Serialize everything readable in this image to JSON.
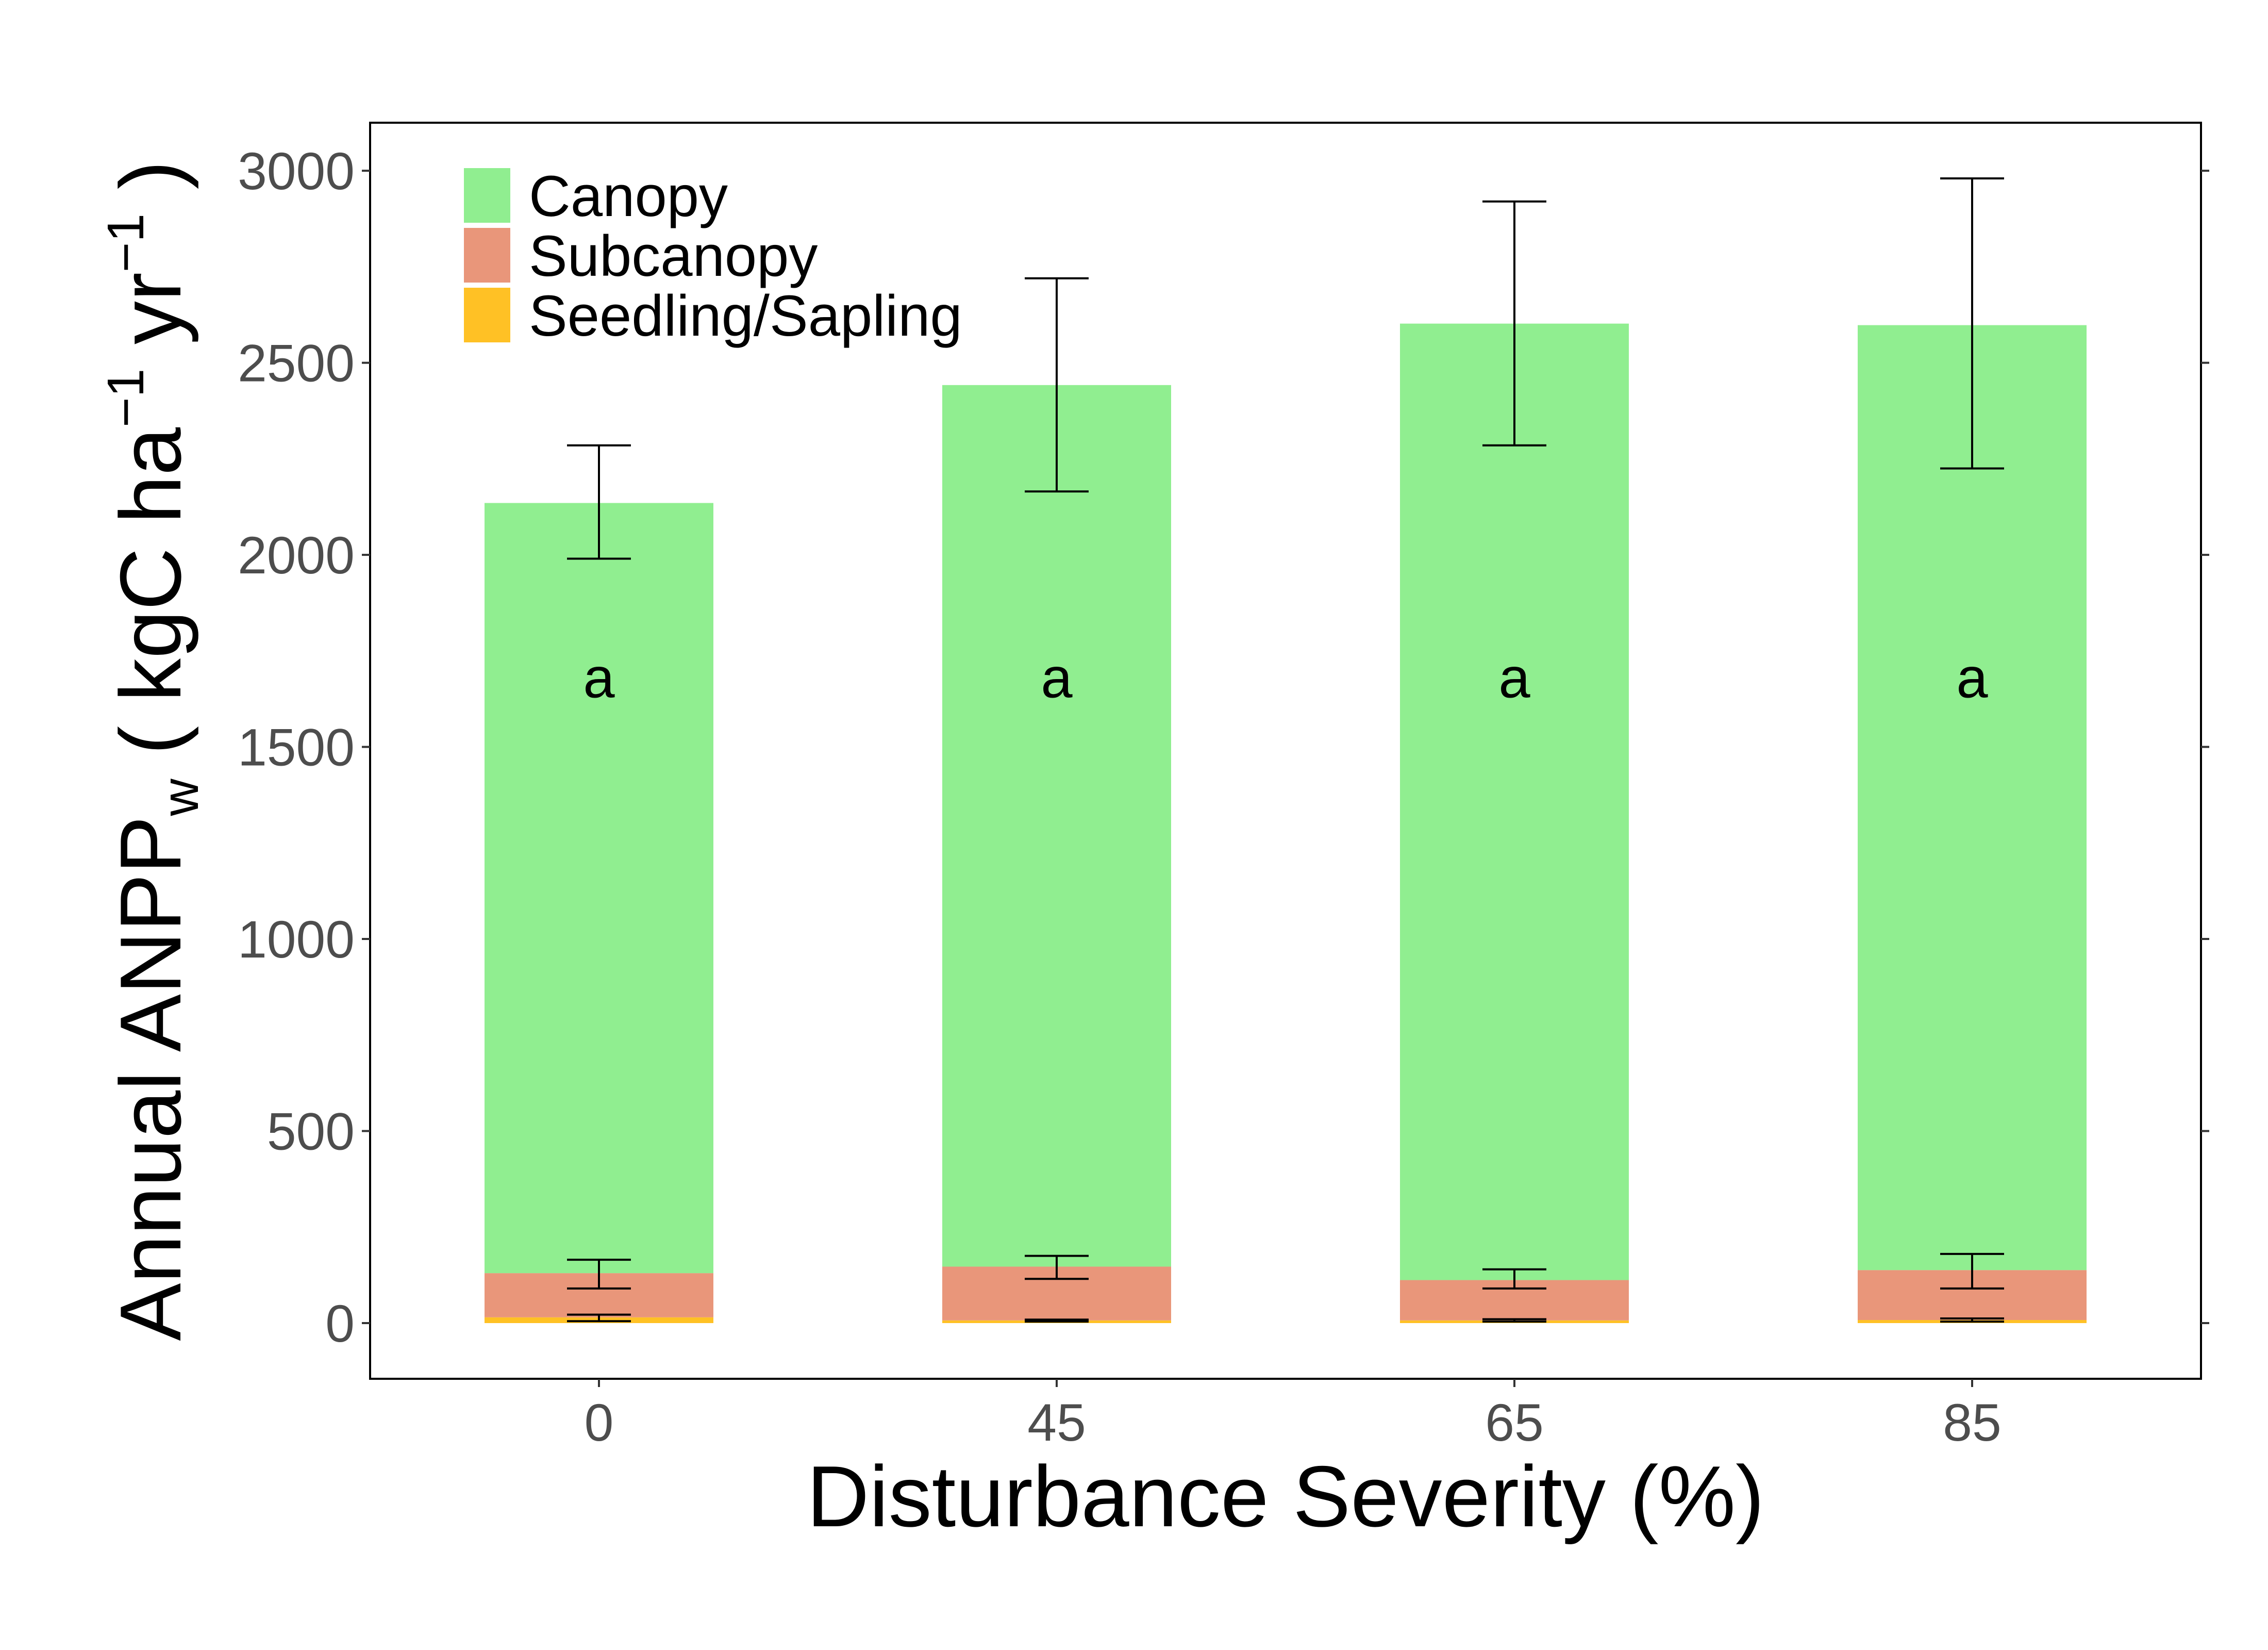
{
  "chart_data": {
    "type": "bar",
    "stacked": true,
    "categories": [
      "0",
      "45",
      "65",
      "85"
    ],
    "series": [
      {
        "name": "Canopy",
        "color": "#90EE90",
        "values": [
          2005,
          2295,
          2490,
          2460
        ],
        "error_top": [
          2285,
          2720,
          2920,
          2980
        ],
        "error_bottom": [
          1990,
          2165,
          2285,
          2225
        ]
      },
      {
        "name": "Subcanopy",
        "color": "#E9967A",
        "values": [
          115,
          140,
          105,
          130
        ],
        "error_top": [
          165,
          175,
          140,
          180
        ],
        "error_bottom": [
          90,
          115,
          90,
          90
        ]
      },
      {
        "name": "Seedling/Sapling",
        "color": "#FFC125",
        "values": [
          15,
          7,
          7,
          8
        ],
        "error_top": [
          22,
          9,
          10,
          12
        ],
        "error_bottom": [
          5,
          4,
          4,
          4
        ]
      }
    ],
    "annotations": [
      "a",
      "a",
      "a",
      "a"
    ],
    "annotation_y": 1680,
    "xlabel": "Disturbance Severity (%)",
    "ylabel": {
      "main": "Annual ANPP",
      "sub": "w",
      "unit_open": " ( kgC ha",
      "sup1": "−1",
      "unit_mid": " yr",
      "sup2": "−1",
      "unit_close": " )"
    },
    "ylim": [
      -145,
      3125
    ],
    "yticks": [
      0,
      500,
      1000,
      1500,
      2000,
      2500,
      3000
    ],
    "legend_position": "top-left",
    "grid": false
  }
}
